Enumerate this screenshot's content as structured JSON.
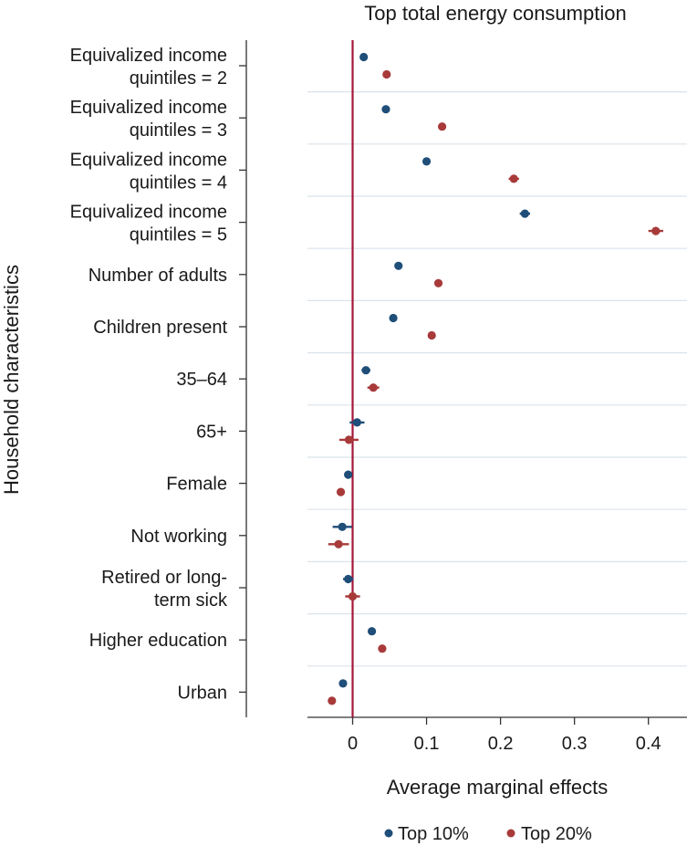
{
  "chart_data": {
    "type": "scatter",
    "subtype": "coefficient-plot",
    "title": "Top total energy consumption",
    "xlabel": "Average marginal effects",
    "ylabel": "Household characteristics",
    "xlim": [
      -0.06,
      0.44
    ],
    "xticks": [
      {
        "value": 0,
        "label": "0"
      },
      {
        "value": 0.1,
        "label": "0.1"
      },
      {
        "value": 0.2,
        "label": "0.2"
      },
      {
        "value": 0.3,
        "label": "0.3"
      },
      {
        "value": 0.4,
        "label": "0.4"
      }
    ],
    "reference_line": 0,
    "colors": {
      "top10": "#1f4e79",
      "top20": "#a83a3a",
      "reference": "#a3173a",
      "grid": "#dbe3ea",
      "axis": "#333333"
    },
    "categories": [
      {
        "label_lines": [
          "Equivalized income",
          "quintiles = 2"
        ]
      },
      {
        "label_lines": [
          "Equivalized income",
          "quintiles = 3"
        ]
      },
      {
        "label_lines": [
          "Equivalized income",
          "quintiles = 4"
        ]
      },
      {
        "label_lines": [
          "Equivalized income",
          "quintiles = 5"
        ]
      },
      {
        "label_lines": [
          "Number of adults"
        ]
      },
      {
        "label_lines": [
          "Children present"
        ]
      },
      {
        "label_lines": [
          "35–64"
        ]
      },
      {
        "label_lines": [
          "65+"
        ]
      },
      {
        "label_lines": [
          "Female"
        ]
      },
      {
        "label_lines": [
          "Not working"
        ]
      },
      {
        "label_lines": [
          "Retired or long-",
          "term sick"
        ]
      },
      {
        "label_lines": [
          "Higher education"
        ]
      },
      {
        "label_lines": [
          "Urban"
        ]
      }
    ],
    "series": [
      {
        "name": "Top 10%",
        "color_key": "top10",
        "values": [
          0.015,
          0.045,
          0.1,
          0.233,
          0.062,
          0.055,
          0.018,
          0.006,
          -0.006,
          -0.014,
          -0.006,
          0.026,
          -0.013
        ],
        "ci_low": [
          0.012,
          0.042,
          0.096,
          0.226,
          0.059,
          0.052,
          0.012,
          -0.004,
          -0.009,
          -0.027,
          -0.013,
          0.023,
          -0.017
        ],
        "ci_high": [
          0.018,
          0.048,
          0.104,
          0.24,
          0.065,
          0.058,
          0.024,
          0.016,
          -0.003,
          -0.001,
          0.001,
          0.029,
          -0.009
        ]
      },
      {
        "name": "Top 20%",
        "color_key": "top20",
        "values": [
          0.046,
          0.121,
          0.218,
          0.41,
          0.116,
          0.107,
          0.028,
          -0.005,
          -0.016,
          -0.019,
          0.0,
          0.04,
          -0.028
        ],
        "ci_low": [
          0.043,
          0.117,
          0.211,
          0.4,
          0.113,
          0.102,
          0.02,
          -0.018,
          -0.021,
          -0.033,
          -0.01,
          0.036,
          -0.032
        ],
        "ci_high": [
          0.049,
          0.125,
          0.225,
          0.42,
          0.119,
          0.112,
          0.036,
          0.008,
          -0.011,
          -0.005,
          0.01,
          0.044,
          -0.024
        ]
      }
    ],
    "legend": {
      "position": "bottom",
      "entries": [
        "Top 10%",
        "Top 20%"
      ]
    }
  }
}
